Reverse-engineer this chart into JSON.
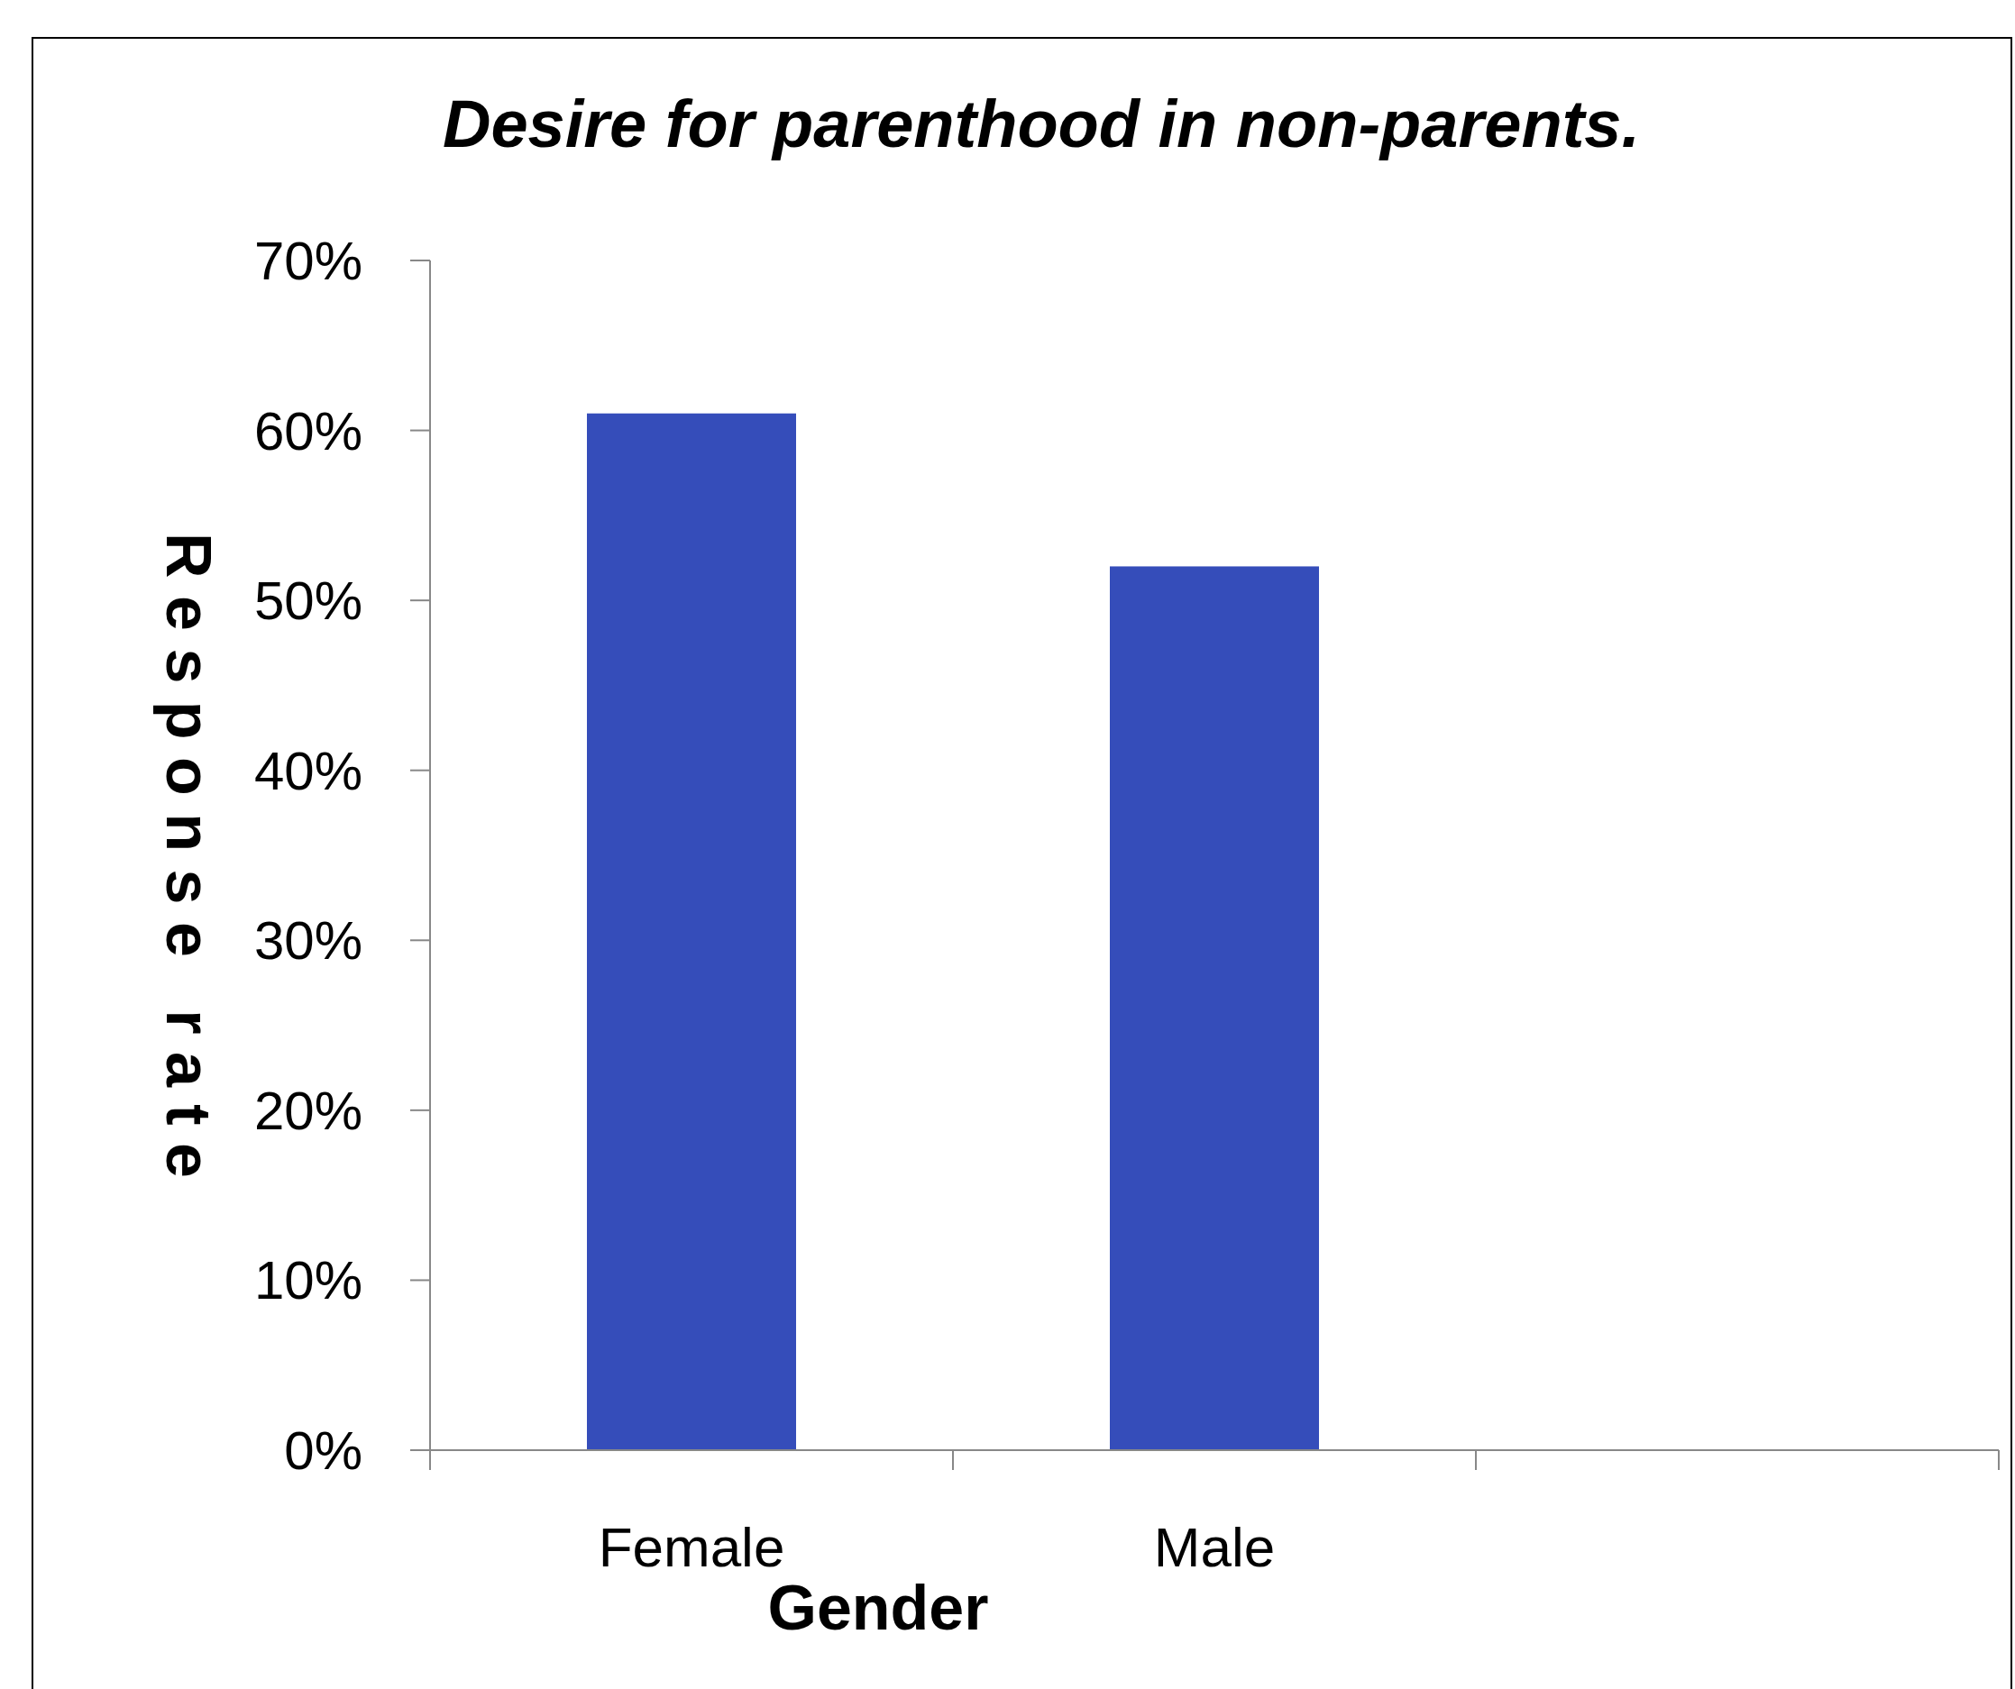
{
  "chart_data": {
    "type": "bar",
    "title": "Desire for parenthood in non-parents.",
    "xlabel": "Gender",
    "ylabel": "Response rate",
    "categories": [
      "Female",
      "Male",
      null
    ],
    "values": [
      61,
      52,
      null
    ],
    "color": "#354dba",
    "ylim": [
      0,
      70
    ],
    "yticks": [
      {
        "value": 0,
        "label": "0%"
      },
      {
        "value": 10,
        "label": "10%"
      },
      {
        "value": 20,
        "label": "20%"
      },
      {
        "value": 30,
        "label": "30%"
      },
      {
        "value": 40,
        "label": "40%"
      },
      {
        "value": 50,
        "label": "50%"
      },
      {
        "value": 60,
        "label": "60%"
      },
      {
        "value": 70,
        "label": "70%"
      }
    ],
    "grid": false
  }
}
